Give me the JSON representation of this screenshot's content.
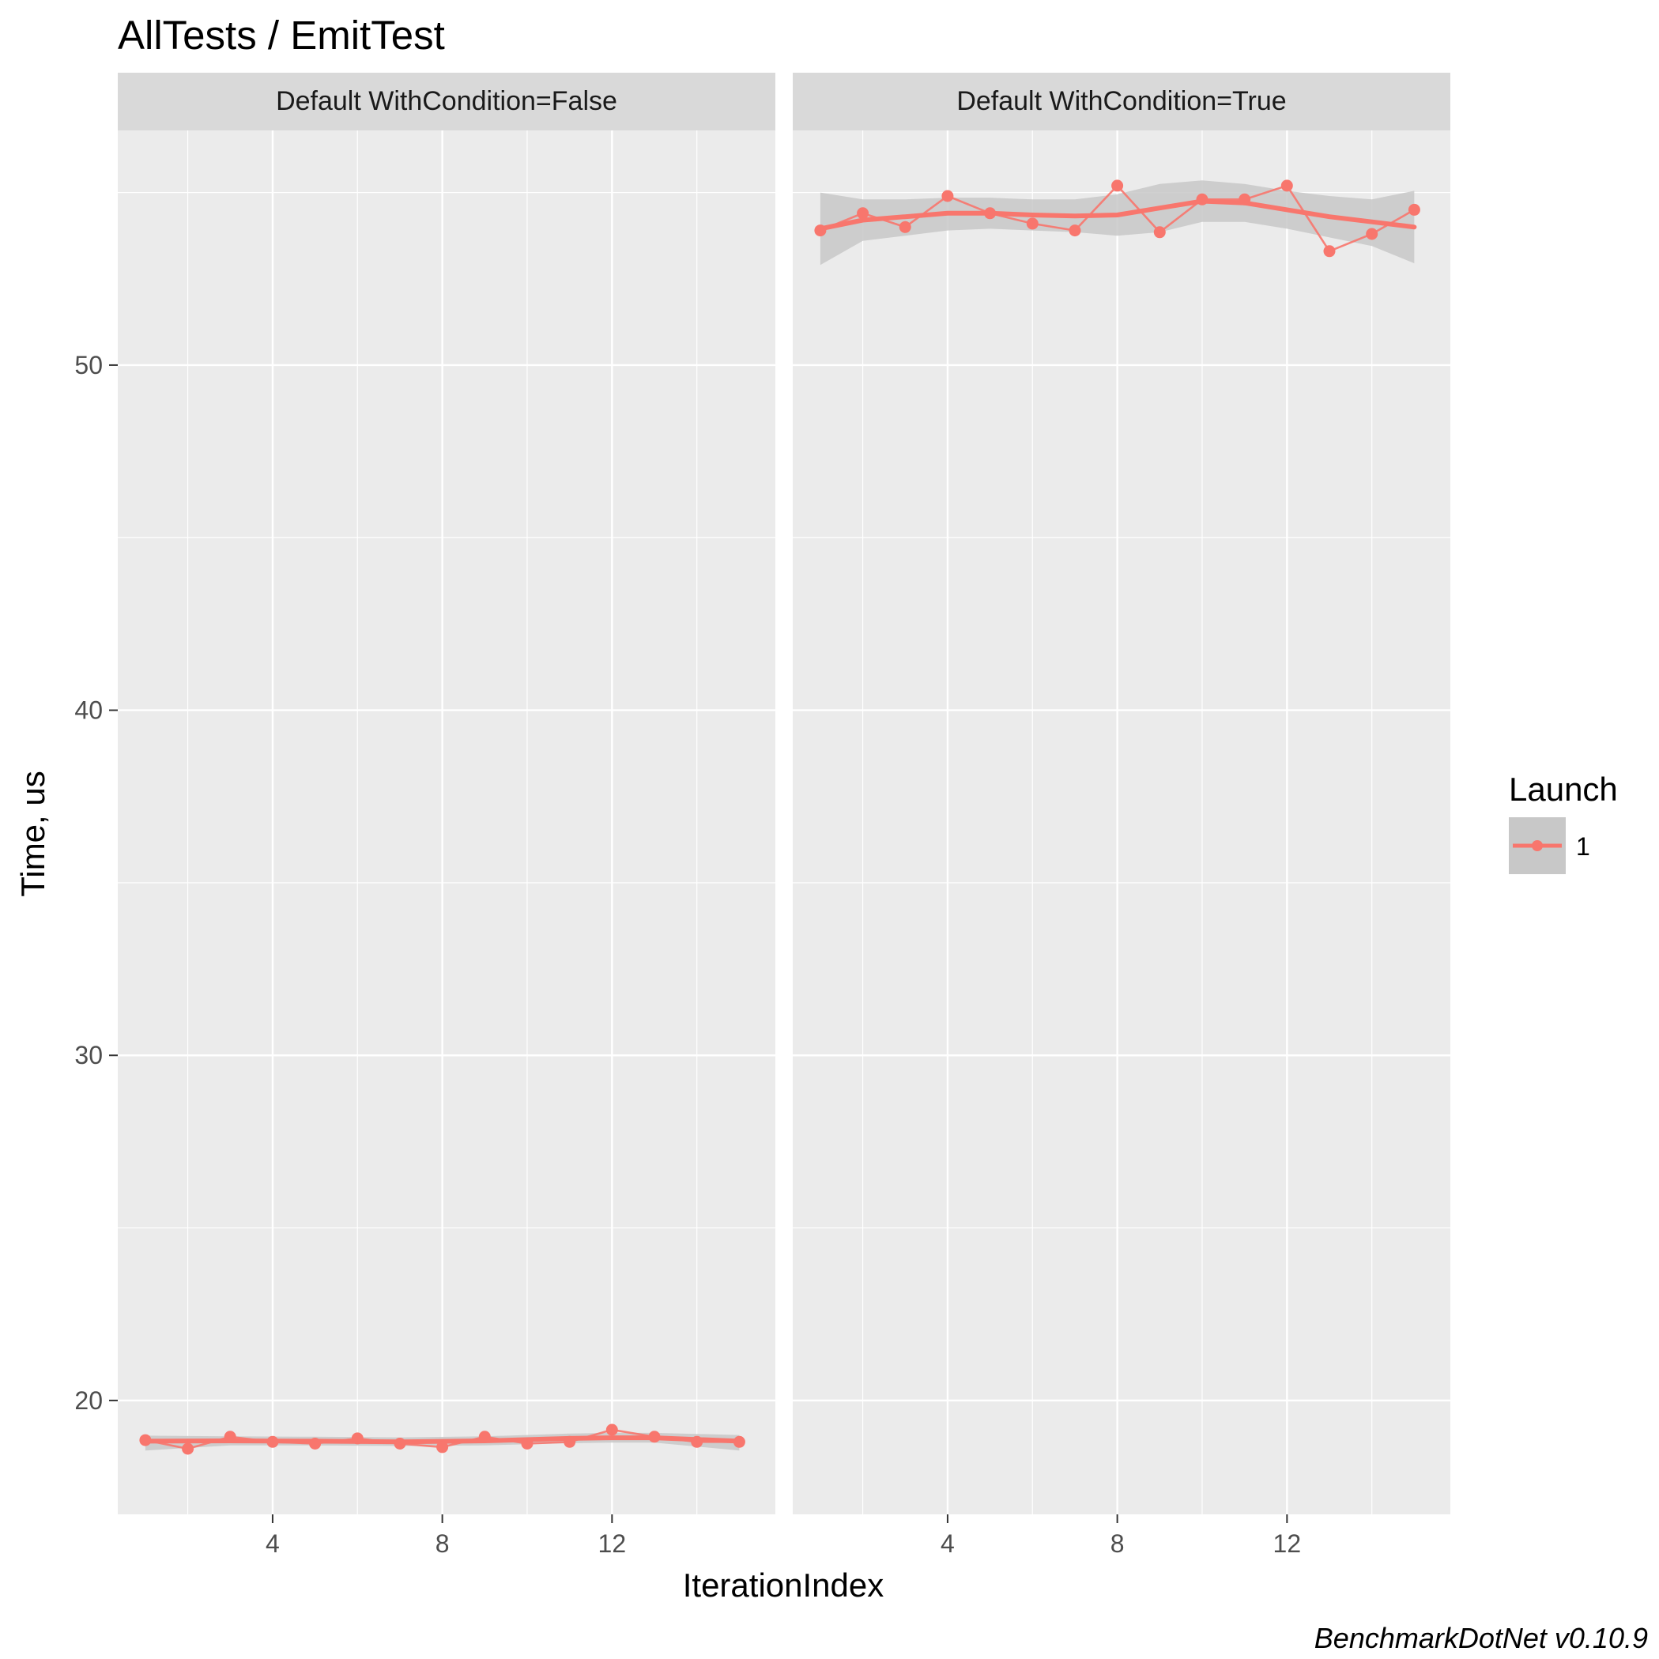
{
  "chart_data": {
    "type": "line",
    "title": "AllTests / EmitTest",
    "xlabel": "IterationIndex",
    "ylabel": "Time, us",
    "caption": "BenchmarkDotNet v0.10.9",
    "xlim": [
      0.35,
      15.85
    ],
    "ylim": [
      16.7,
      56.8
    ],
    "x_ticks": [
      4,
      8,
      12
    ],
    "y_ticks": [
      20,
      30,
      40,
      50
    ],
    "grid": true,
    "legend": {
      "title": "Launch",
      "position": "right",
      "entries": [
        "1"
      ]
    },
    "colors": {
      "series": "#f8766d",
      "smooth": "#f8766d",
      "band": "#c8c8c8",
      "panel": "#ebebeb",
      "strip": "#d9d9d9",
      "grid": "#ffffff"
    },
    "panels": [
      {
        "label": "Default WithCondition=False",
        "series": [
          {
            "name": "1",
            "x": [
              1,
              2,
              3,
              4,
              5,
              6,
              7,
              8,
              9,
              10,
              11,
              12,
              13,
              14,
              15
            ],
            "values": [
              18.85,
              18.6,
              18.95,
              18.8,
              18.75,
              18.9,
              18.75,
              18.65,
              18.95,
              18.75,
              18.8,
              19.15,
              18.95,
              18.8,
              18.8
            ]
          }
        ],
        "smooth": {
          "x": [
            1,
            3,
            5,
            7,
            9,
            11,
            12,
            13,
            15
          ],
          "values": [
            18.82,
            18.83,
            18.82,
            18.8,
            18.83,
            18.9,
            18.92,
            18.92,
            18.82
          ]
        },
        "band": {
          "x": [
            1,
            3,
            5,
            7,
            9,
            11,
            12,
            13,
            15
          ],
          "upper": [
            18.98,
            18.96,
            18.95,
            18.93,
            18.96,
            19.04,
            19.06,
            19.06,
            19.0
          ],
          "lower": [
            18.55,
            18.7,
            18.7,
            18.68,
            18.7,
            18.76,
            18.78,
            18.78,
            18.55
          ]
        }
      },
      {
        "label": "Default WithCondition=True",
        "series": [
          {
            "name": "1",
            "x": [
              1,
              2,
              3,
              4,
              5,
              6,
              7,
              8,
              9,
              10,
              11,
              12,
              13,
              14,
              15
            ],
            "values": [
              53.9,
              54.4,
              54.0,
              54.9,
              54.4,
              54.1,
              53.9,
              55.2,
              53.85,
              54.8,
              54.8,
              55.2,
              53.3,
              53.8,
              54.5
            ]
          }
        ],
        "smooth": {
          "x": [
            1,
            2,
            3,
            4,
            5,
            6,
            7,
            8,
            9,
            10,
            11,
            12,
            13,
            14,
            15
          ],
          "values": [
            53.95,
            54.2,
            54.3,
            54.4,
            54.4,
            54.35,
            54.32,
            54.35,
            54.55,
            54.75,
            54.7,
            54.5,
            54.3,
            54.15,
            54.0
          ]
        },
        "band": {
          "x": [
            1,
            2,
            3,
            4,
            5,
            6,
            7,
            8,
            9,
            10,
            11,
            12,
            13,
            14,
            15
          ],
          "upper": [
            55.0,
            54.8,
            54.8,
            54.85,
            54.85,
            54.8,
            54.8,
            54.95,
            55.25,
            55.35,
            55.25,
            55.05,
            54.9,
            54.8,
            55.05
          ],
          "lower": [
            52.9,
            53.6,
            53.75,
            53.9,
            53.95,
            53.9,
            53.85,
            53.75,
            53.85,
            54.15,
            54.15,
            53.95,
            53.7,
            53.45,
            52.95
          ]
        }
      }
    ]
  }
}
